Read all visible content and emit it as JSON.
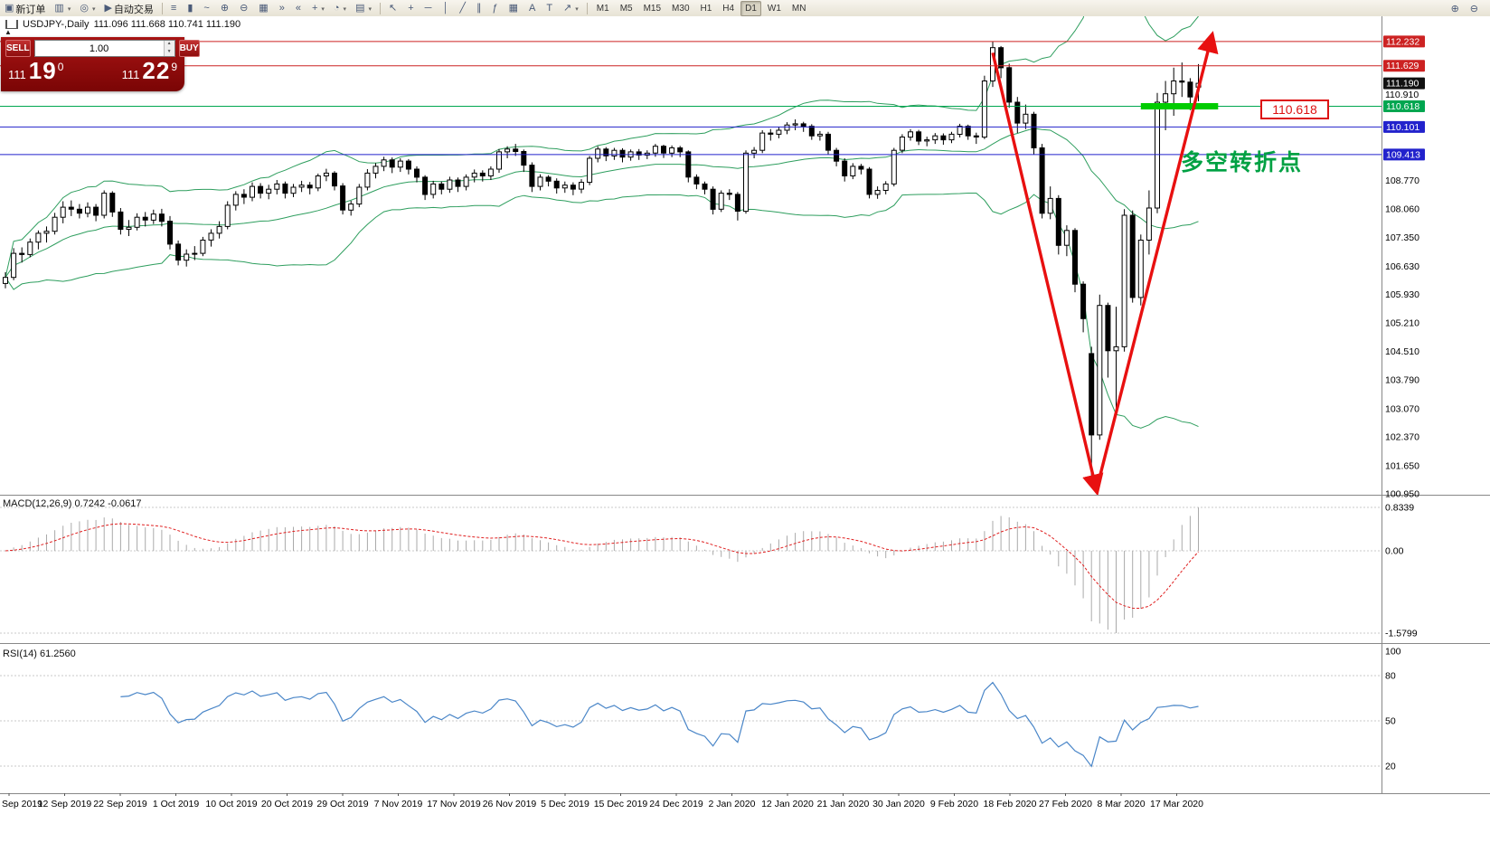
{
  "toolbar": {
    "left_buttons": [
      {
        "name": "new-order-button",
        "icon": "▣",
        "label": "新订单"
      },
      {
        "name": "chart-window-button",
        "icon": "▥",
        "dropdown": true
      },
      {
        "name": "profiles-button",
        "icon": "◎",
        "dropdown": true
      },
      {
        "name": "autotrading-button",
        "icon": "▶",
        "label": "自动交易"
      }
    ],
    "chart_buttons": [
      {
        "name": "bar-chart-icon",
        "icon": "≡"
      },
      {
        "name": "candlestick-icon",
        "icon": "▮"
      },
      {
        "name": "line-chart-icon",
        "icon": "~"
      },
      {
        "name": "zoom-in-button",
        "icon": "⊕"
      },
      {
        "name": "zoom-out-button",
        "icon": "⊖"
      },
      {
        "name": "tile-windows-button",
        "icon": "▦"
      },
      {
        "name": "auto-scroll-button",
        "icon": "»"
      },
      {
        "name": "chart-shift-button",
        "icon": "«"
      },
      {
        "name": "indicators-button",
        "icon": "+",
        "dropdown": true
      },
      {
        "name": "periods-button",
        "icon": "◔",
        "dropdown": true
      },
      {
        "name": "templates-button",
        "icon": "▤",
        "dropdown": true
      }
    ],
    "draw_buttons": [
      {
        "name": "cursor-button",
        "icon": "↖"
      },
      {
        "name": "crosshair-button",
        "icon": "+"
      },
      {
        "name": "horizontal-line-button",
        "icon": "─"
      },
      {
        "name": "vertical-line-button",
        "icon": "│"
      },
      {
        "name": "trendline-button",
        "icon": "╱"
      },
      {
        "name": "channel-button",
        "icon": "∥"
      },
      {
        "name": "fibonacci-button",
        "icon": "ƒ"
      },
      {
        "name": "grid-button",
        "icon": "▦"
      },
      {
        "name": "text-button",
        "icon": "A"
      },
      {
        "name": "label-button",
        "icon": "T"
      },
      {
        "name": "shapes-button",
        "icon": "↗",
        "dropdown": true
      }
    ],
    "timeframes": [
      "M1",
      "M5",
      "M15",
      "M30",
      "H1",
      "H4",
      "D1",
      "W1",
      "MN"
    ],
    "active_timeframe": "D1",
    "right_buttons": [
      {
        "name": "zoom-in-right-button",
        "icon": "⊕"
      },
      {
        "name": "zoom-out-right-button",
        "icon": "⊖"
      }
    ]
  },
  "symbol_header": {
    "title": "USDJPY-,Daily",
    "ohlc": "111.096 111.668 110.741 111.190"
  },
  "trade_panel": {
    "collapse_icon": "▲",
    "sell_label": "SELL",
    "buy_label": "BUY",
    "volume": "1.00",
    "bid_prefix": "111",
    "bid_big": "19",
    "bid_sup": "0",
    "ask_prefix": "111",
    "ask_big": "22",
    "ask_sup": "9"
  },
  "chart_data": {
    "type": "candlestick",
    "symbol": "USDJPY",
    "period": "Daily",
    "main_ylim": [
      100.93,
      112.862
    ],
    "bollinger": {
      "period": 20,
      "deviation": 2,
      "color": "#2e9e5e"
    },
    "candle_colors": {
      "bull": "#ffffff",
      "bear": "#000000",
      "outline": "#000000"
    },
    "candles": [
      [
        106.2,
        106.48,
        106.08,
        106.35
      ],
      [
        106.35,
        107.08,
        106.28,
        106.95
      ],
      [
        106.95,
        107.1,
        106.72,
        106.92
      ],
      [
        106.92,
        107.32,
        106.85,
        107.23
      ],
      [
        107.23,
        107.52,
        107.05,
        107.45
      ],
      [
        107.45,
        107.62,
        107.22,
        107.5
      ],
      [
        107.5,
        107.96,
        107.42,
        107.85
      ],
      [
        107.85,
        108.25,
        107.7,
        108.1
      ],
      [
        108.1,
        108.27,
        107.88,
        108.05
      ],
      [
        108.05,
        108.18,
        107.82,
        107.95
      ],
      [
        107.95,
        108.22,
        107.85,
        108.1
      ],
      [
        108.1,
        108.18,
        107.75,
        107.9
      ],
      [
        107.9,
        108.52,
        107.82,
        108.45
      ],
      [
        108.45,
        108.5,
        107.86,
        107.98
      ],
      [
        107.98,
        108.08,
        107.42,
        107.55
      ],
      [
        107.55,
        107.78,
        107.38,
        107.6
      ],
      [
        107.6,
        107.95,
        107.52,
        107.85
      ],
      [
        107.85,
        107.98,
        107.62,
        107.78
      ],
      [
        107.78,
        108.04,
        107.68,
        107.93
      ],
      [
        107.93,
        108.06,
        107.62,
        107.75
      ],
      [
        107.75,
        107.88,
        107.05,
        107.18
      ],
      [
        107.18,
        107.27,
        106.65,
        106.78
      ],
      [
        106.78,
        107.05,
        106.62,
        106.93
      ],
      [
        106.93,
        107.13,
        106.78,
        106.95
      ],
      [
        106.95,
        107.36,
        106.88,
        107.28
      ],
      [
        107.28,
        107.55,
        107.12,
        107.45
      ],
      [
        107.45,
        107.75,
        107.32,
        107.62
      ],
      [
        107.62,
        108.25,
        107.55,
        108.15
      ],
      [
        108.15,
        108.5,
        108.02,
        108.42
      ],
      [
        108.42,
        108.55,
        108.18,
        108.35
      ],
      [
        108.35,
        108.72,
        108.25,
        108.62
      ],
      [
        108.62,
        108.7,
        108.32,
        108.45
      ],
      [
        108.45,
        108.66,
        108.3,
        108.55
      ],
      [
        108.55,
        108.78,
        108.42,
        108.68
      ],
      [
        108.68,
        108.74,
        108.32,
        108.45
      ],
      [
        108.45,
        108.68,
        108.35,
        108.6
      ],
      [
        108.6,
        108.76,
        108.48,
        108.65
      ],
      [
        108.65,
        108.73,
        108.42,
        108.58
      ],
      [
        108.58,
        108.94,
        108.5,
        108.88
      ],
      [
        108.88,
        109.06,
        108.75,
        108.95
      ],
      [
        108.95,
        109.0,
        108.52,
        108.63
      ],
      [
        108.63,
        108.7,
        107.92,
        108.03
      ],
      [
        108.03,
        108.26,
        107.89,
        108.18
      ],
      [
        108.18,
        108.68,
        108.1,
        108.6
      ],
      [
        108.6,
        109.05,
        108.52,
        108.95
      ],
      [
        108.95,
        109.2,
        108.82,
        109.12
      ],
      [
        109.12,
        109.36,
        109.0,
        109.28
      ],
      [
        109.28,
        109.34,
        108.95,
        109.1
      ],
      [
        109.1,
        109.32,
        108.98,
        109.25
      ],
      [
        109.25,
        109.3,
        108.92,
        109.05
      ],
      [
        109.05,
        109.12,
        108.72,
        108.85
      ],
      [
        108.85,
        108.9,
        108.28,
        108.42
      ],
      [
        108.42,
        108.76,
        108.32,
        108.68
      ],
      [
        108.68,
        108.74,
        108.42,
        108.55
      ],
      [
        108.55,
        108.86,
        108.46,
        108.78
      ],
      [
        108.78,
        108.84,
        108.48,
        108.62
      ],
      [
        108.62,
        108.92,
        108.52,
        108.85
      ],
      [
        108.85,
        109.04,
        108.72,
        108.95
      ],
      [
        108.95,
        109.02,
        108.74,
        108.88
      ],
      [
        108.88,
        109.12,
        108.78,
        109.05
      ],
      [
        109.05,
        109.55,
        108.96,
        109.48
      ],
      [
        109.48,
        109.62,
        109.32,
        109.55
      ],
      [
        109.55,
        109.68,
        109.38,
        109.49
      ],
      [
        109.49,
        109.54,
        108.98,
        109.15
      ],
      [
        109.15,
        109.22,
        108.48,
        108.62
      ],
      [
        108.62,
        108.92,
        108.52,
        108.85
      ],
      [
        108.85,
        108.9,
        108.62,
        108.75
      ],
      [
        108.75,
        108.82,
        108.44,
        108.58
      ],
      [
        108.58,
        108.74,
        108.46,
        108.65
      ],
      [
        108.65,
        108.72,
        108.4,
        108.55
      ],
      [
        108.55,
        108.8,
        108.45,
        108.72
      ],
      [
        108.72,
        109.38,
        108.65,
        109.32
      ],
      [
        109.32,
        109.62,
        109.22,
        109.55
      ],
      [
        109.55,
        109.6,
        109.25,
        109.38
      ],
      [
        109.38,
        109.58,
        109.28,
        109.52
      ],
      [
        109.52,
        109.57,
        109.22,
        109.35
      ],
      [
        109.35,
        109.54,
        109.26,
        109.48
      ],
      [
        109.48,
        109.55,
        109.28,
        109.4
      ],
      [
        109.4,
        109.52,
        109.3,
        109.45
      ],
      [
        109.45,
        109.68,
        109.36,
        109.62
      ],
      [
        109.62,
        109.66,
        109.33,
        109.45
      ],
      [
        109.45,
        109.64,
        109.35,
        109.58
      ],
      [
        109.58,
        109.63,
        109.35,
        109.48
      ],
      [
        109.48,
        109.52,
        108.72,
        108.85
      ],
      [
        108.85,
        108.92,
        108.55,
        108.68
      ],
      [
        108.68,
        108.74,
        108.42,
        108.55
      ],
      [
        108.55,
        108.62,
        107.92,
        108.05
      ],
      [
        108.05,
        108.52,
        107.98,
        108.45
      ],
      [
        108.45,
        108.55,
        108.28,
        108.42
      ],
      [
        108.42,
        108.48,
        107.77,
        108.0
      ],
      [
        108.0,
        109.52,
        107.94,
        109.45
      ],
      [
        109.45,
        109.6,
        109.32,
        109.52
      ],
      [
        109.52,
        110.02,
        109.45,
        109.95
      ],
      [
        109.95,
        110.05,
        109.76,
        109.92
      ],
      [
        109.92,
        110.1,
        109.82,
        110.02
      ],
      [
        110.02,
        110.22,
        109.92,
        110.15
      ],
      [
        110.15,
        110.29,
        110.02,
        110.18
      ],
      [
        110.18,
        110.23,
        109.98,
        110.12
      ],
      [
        110.12,
        110.17,
        109.78,
        109.88
      ],
      [
        109.88,
        110.0,
        109.76,
        109.92
      ],
      [
        109.92,
        109.98,
        109.42,
        109.52
      ],
      [
        109.52,
        109.58,
        109.12,
        109.25
      ],
      [
        109.25,
        109.32,
        108.74,
        108.88
      ],
      [
        108.88,
        109.2,
        108.8,
        109.12
      ],
      [
        109.12,
        109.18,
        108.92,
        109.05
      ],
      [
        109.05,
        109.1,
        108.32,
        108.42
      ],
      [
        108.42,
        108.62,
        108.31,
        108.52
      ],
      [
        108.52,
        108.75,
        108.42,
        108.68
      ],
      [
        108.68,
        109.58,
        108.62,
        109.52
      ],
      [
        109.52,
        109.92,
        109.45,
        109.85
      ],
      [
        109.85,
        110.05,
        109.76,
        109.98
      ],
      [
        109.98,
        110.03,
        109.65,
        109.75
      ],
      [
        109.75,
        109.86,
        109.62,
        109.78
      ],
      [
        109.78,
        109.95,
        109.68,
        109.88
      ],
      [
        109.88,
        109.94,
        109.66,
        109.78
      ],
      [
        109.78,
        109.98,
        109.7,
        109.92
      ],
      [
        109.92,
        110.18,
        109.84,
        110.12
      ],
      [
        110.12,
        110.16,
        109.78,
        109.88
      ],
      [
        109.88,
        109.96,
        109.68,
        109.85
      ],
      [
        109.85,
        111.38,
        109.8,
        111.25
      ],
      [
        111.25,
        112.23,
        111.1,
        112.08
      ],
      [
        112.08,
        112.12,
        111.32,
        111.58
      ],
      [
        111.58,
        111.68,
        110.58,
        110.72
      ],
      [
        110.72,
        110.85,
        109.95,
        110.2
      ],
      [
        110.2,
        110.66,
        110.05,
        110.42
      ],
      [
        110.42,
        110.48,
        109.42,
        109.58
      ],
      [
        109.58,
        109.68,
        107.82,
        107.95
      ],
      [
        107.95,
        108.62,
        107.8,
        108.32
      ],
      [
        108.32,
        108.4,
        106.92,
        107.15
      ],
      [
        107.15,
        107.65,
        106.88,
        107.52
      ],
      [
        107.52,
        107.58,
        105.98,
        106.18
      ],
      [
        106.18,
        106.25,
        104.98,
        105.32
      ],
      [
        104.45,
        104.62,
        101.2,
        102.42
      ],
      [
        102.42,
        105.92,
        102.3,
        105.65
      ],
      [
        105.65,
        105.72,
        103.85,
        104.52
      ],
      [
        104.52,
        105.62,
        103.08,
        104.62
      ],
      [
        104.62,
        108.05,
        104.5,
        107.9
      ],
      [
        107.9,
        108.02,
        105.72,
        105.85
      ],
      [
        105.85,
        107.42,
        105.65,
        107.28
      ],
      [
        107.28,
        108.52,
        106.92,
        108.08
      ],
      [
        108.08,
        110.95,
        107.95,
        110.72
      ],
      [
        110.72,
        111.25,
        110.02,
        110.93
      ],
      [
        110.93,
        111.58,
        110.38,
        111.25
      ],
      [
        111.25,
        111.71,
        110.85,
        111.22
      ],
      [
        111.22,
        111.32,
        110.52,
        110.85
      ],
      [
        111.096,
        111.668,
        110.741,
        111.19
      ]
    ],
    "x_labels": [
      "Sep 2019",
      "12 Sep 2019",
      "22 Sep 2019",
      "1 Oct 2019",
      "10 Oct 2019",
      "20 Oct 2019",
      "29 Oct 2019",
      "7 Nov 2019",
      "17 Nov 2019",
      "26 Nov 2019",
      "5 Dec 2019",
      "15 Dec 2019",
      "24 Dec 2019",
      "2 Jan 2020",
      "12 Jan 2020",
      "21 Jan 2020",
      "30 Jan 2020",
      "9 Feb 2020",
      "18 Feb 2020",
      "27 Feb 2020",
      "8 Mar 2020",
      "17 Mar 2020"
    ],
    "y_axis_ticks": [
      "110.910",
      "108.770",
      "108.060",
      "107.350",
      "106.630",
      "105.930",
      "105.210",
      "104.510",
      "103.790",
      "103.070",
      "102.370",
      "101.650",
      "100.950"
    ],
    "price_lines": [
      {
        "price": 112.232,
        "label": "112.232",
        "color": "#cc2222"
      },
      {
        "price": 111.629,
        "label": "111.629",
        "color": "#cc2222"
      },
      {
        "price": 110.618,
        "label": "110.618",
        "color": "#00a650"
      },
      {
        "price": 110.101,
        "label": "110.101",
        "color": "#2222cc"
      },
      {
        "price": 109.413,
        "label": "109.413",
        "color": "#2222cc"
      }
    ],
    "current_price": {
      "price": 111.19,
      "label": "111.190",
      "color": "#111111"
    },
    "indicators": {
      "macd": {
        "label": "MACD(12,26,9)",
        "values": "0.7242 -0.0617",
        "fast": 12,
        "slow": 26,
        "signal": 9,
        "ylim": [
          -1.77,
          1.076
        ],
        "axis": [
          {
            "v": 0.8339,
            "label": "0.8339"
          },
          {
            "v": 0,
            "label": "0.00"
          },
          {
            "v": -1.5799,
            "label": "-1.5799"
          }
        ],
        "hist_color": "#aaaaaa",
        "signal_color": "#e02020",
        "max_shown": 0.8339,
        "min_shown": -1.5799
      },
      "rsi": {
        "label": "RSI(14)",
        "value": "61.2560",
        "period": 14,
        "ylim": [
          2,
          101.6
        ],
        "axis": [
          100,
          80,
          50,
          20
        ],
        "levels": [
          80,
          50,
          20
        ],
        "color": "#4a86c8"
      }
    },
    "annotations": {
      "support_zone": {
        "price": 110.618,
        "from_candle": 138,
        "to_candle": 147.4,
        "color": "#00cc00"
      },
      "price_label_box": "110.618",
      "cn_text": "多空转折点",
      "arrows": [
        {
          "from": [
            120,
            111.95
          ],
          "to": [
            132.6,
            101.05
          ]
        },
        {
          "from": [
            132.6,
            101.05
          ],
          "to": [
            146.6,
            112.35
          ]
        }
      ],
      "arrow_color": "#e81010"
    }
  }
}
